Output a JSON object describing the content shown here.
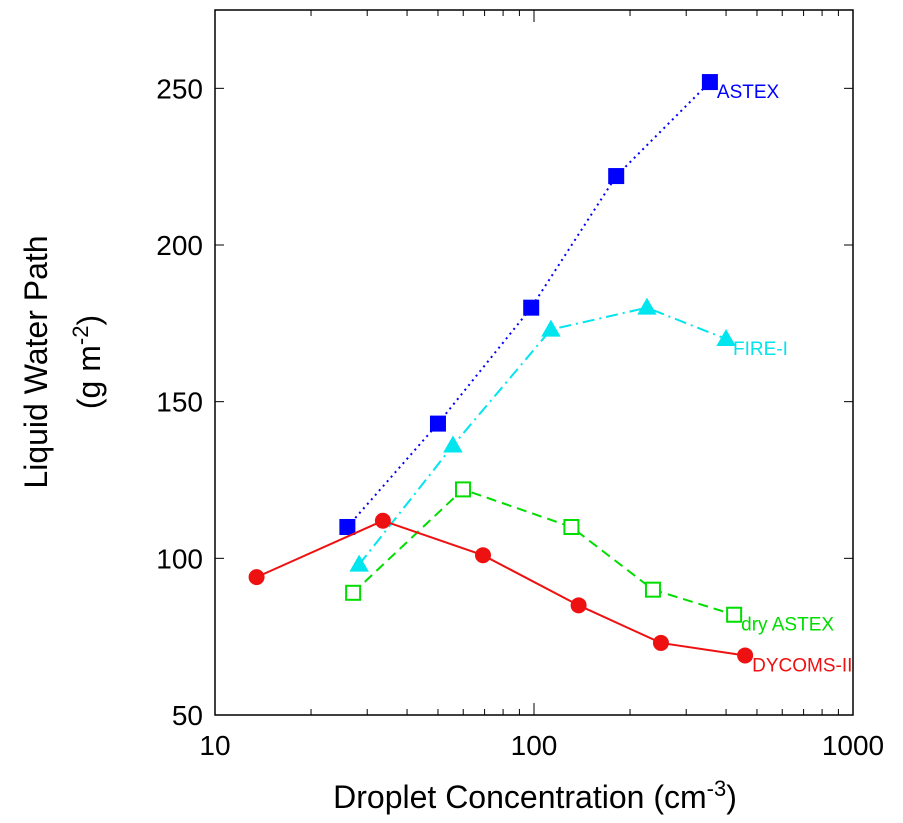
{
  "chart_data": {
    "type": "line",
    "xlabel": {
      "text": "Droplet Concentration (cm",
      "sup": "-3",
      "close": ")"
    },
    "ylabel": "Liquid Water Path",
    "ylabel_unit": {
      "text": "(g m",
      "sup": "-2",
      "close": ")"
    },
    "xscale": "log",
    "xlim": [
      10,
      1000
    ],
    "xticks": [
      10,
      100,
      1000
    ],
    "xminorticks": [
      20,
      30,
      40,
      50,
      60,
      70,
      80,
      90,
      200,
      300,
      400,
      500,
      600,
      700,
      800,
      900
    ],
    "ylim": [
      50,
      275
    ],
    "yticks": [
      50,
      100,
      150,
      200,
      250
    ],
    "grid": false,
    "series": [
      {
        "name": "ASTEX",
        "color": "#0000ff",
        "marker": "square",
        "filled": true,
        "line": "dotted",
        "x": [
          26,
          50,
          98,
          181,
          356
        ],
        "values": [
          110,
          143,
          180,
          222,
          252
        ]
      },
      {
        "name": "FIRE-I",
        "color": "#00e5ee",
        "marker": "triangle",
        "filled": true,
        "line": "dashdot",
        "x": [
          28.3,
          55.7,
          113,
          226,
          400
        ],
        "values": [
          98,
          136,
          173,
          180,
          170
        ]
      },
      {
        "name": "dry ASTEX",
        "color": "#00dd00",
        "marker": "square",
        "filled": false,
        "line": "dashed",
        "x": [
          27.1,
          59.9,
          131,
          236,
          424
        ],
        "values": [
          89,
          122,
          110,
          90,
          82
        ]
      },
      {
        "name": "DYCOMS-II",
        "color": "#ee1111",
        "marker": "circle",
        "filled": true,
        "line": "solid",
        "x": [
          13.5,
          33.6,
          69.2,
          138,
          250,
          459
        ],
        "values": [
          94,
          112,
          101,
          85,
          73,
          69
        ]
      }
    ]
  }
}
